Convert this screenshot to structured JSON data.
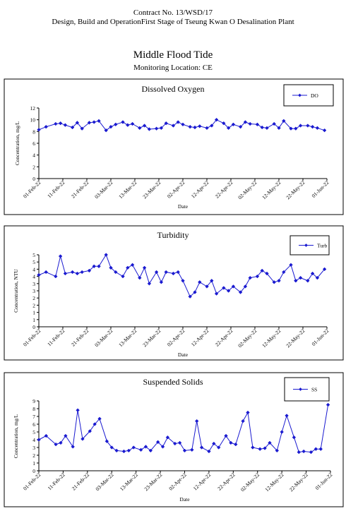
{
  "header": {
    "contract": "Contract No. 13/WSD/17",
    "project": "Design, Build and OperationFirst Stage  of Tseung Kwan O Desalination Plant",
    "title": "Middle Flood Tide",
    "location": "Monitoring Location: CE"
  },
  "colors": {
    "series": "#1a1ad0",
    "frame": "#000000"
  },
  "chart_data": [
    {
      "type": "line",
      "title": "Dissolved Oxygen",
      "xlabel": "Date",
      "ylabel": "Concentration, mg/L",
      "ylim": [
        0,
        12
      ],
      "yticks": [
        0,
        2,
        4,
        6,
        8,
        10,
        12
      ],
      "xticks": [
        "01-Feb-22",
        "11-Feb-22",
        "21-Feb-22",
        "03-Mar-22",
        "13-Mar-22",
        "23-Mar-22",
        "02-Apr-22",
        "12-Apr-22",
        "22-Apr-22",
        "02-May-22",
        "12-May-22",
        "22-May-22",
        "01-Jun-22"
      ],
      "legend_position": "top-right",
      "series": [
        {
          "name": "DO",
          "x": [
            "01-Feb-22",
            "04-Feb-22",
            "08-Feb-22",
            "10-Feb-22",
            "12-Feb-22",
            "15-Feb-22",
            "17-Feb-22",
            "19-Feb-22",
            "22-Feb-22",
            "24-Feb-22",
            "26-Feb-22",
            "01-Mar-22",
            "03-Mar-22",
            "05-Mar-22",
            "08-Mar-22",
            "10-Mar-22",
            "12-Mar-22",
            "15-Mar-22",
            "17-Mar-22",
            "19-Mar-22",
            "22-Mar-22",
            "24-Mar-22",
            "26-Mar-22",
            "29-Mar-22",
            "31-Mar-22",
            "02-Apr-22",
            "05-Apr-22",
            "07-Apr-22",
            "09-Apr-22",
            "12-Apr-22",
            "14-Apr-22",
            "16-Apr-22",
            "19-Apr-22",
            "21-Apr-22",
            "23-Apr-22",
            "26-Apr-22",
            "28-Apr-22",
            "30-Apr-22",
            "03-May-22",
            "05-May-22",
            "07-May-22",
            "10-May-22",
            "12-May-22",
            "14-May-22",
            "17-May-22",
            "19-May-22",
            "21-May-22",
            "24-May-22",
            "26-May-22",
            "28-May-22",
            "31-May-22"
          ],
          "values": [
            8.3,
            8.8,
            9.3,
            9.4,
            9.1,
            8.7,
            9.5,
            8.5,
            9.5,
            9.6,
            9.8,
            8.2,
            8.8,
            9.2,
            9.6,
            9.1,
            9.3,
            8.6,
            9.0,
            8.4,
            8.5,
            8.6,
            9.4,
            9.0,
            9.6,
            9.2,
            8.8,
            8.7,
            8.9,
            8.6,
            9.0,
            10.0,
            9.4,
            8.6,
            9.2,
            8.8,
            9.6,
            9.3,
            9.2,
            8.7,
            8.6,
            9.3,
            8.6,
            9.8,
            8.5,
            8.5,
            9.0,
            9.0,
            8.8,
            8.6,
            8.2
          ]
        }
      ]
    },
    {
      "type": "line",
      "title": "Turbidity",
      "xlabel": "Date",
      "ylabel": "Concentration, NTU",
      "ylim": [
        0,
        5
      ],
      "yticks": [
        0,
        0.5,
        1,
        1.5,
        2,
        2.5,
        3,
        3.5,
        4,
        4.5,
        5
      ],
      "ytick_labels": [
        "0",
        "1",
        "1",
        "2",
        "2",
        "3",
        "3",
        "4",
        "4",
        "5",
        "5"
      ],
      "xticks": [
        "01-Feb-22",
        "11-Feb-22",
        "21-Feb-22",
        "03-Mar-22",
        "13-Mar-22",
        "23-Mar-22",
        "02-Apr-22",
        "12-Apr-22",
        "22-Apr-22",
        "02-May-22",
        "12-May-22",
        "22-May-22",
        "01-Jun-22"
      ],
      "legend_position": "top-right",
      "series": [
        {
          "name": "Turb",
          "x": [
            "01-Feb-22",
            "04-Feb-22",
            "08-Feb-22",
            "10-Feb-22",
            "12-Feb-22",
            "15-Feb-22",
            "17-Feb-22",
            "19-Feb-22",
            "22-Feb-22",
            "24-Feb-22",
            "26-Feb-22",
            "01-Mar-22",
            "03-Mar-22",
            "05-Mar-22",
            "08-Mar-22",
            "10-Mar-22",
            "12-Mar-22",
            "15-Mar-22",
            "17-Mar-22",
            "19-Mar-22",
            "22-Mar-22",
            "24-Mar-22",
            "26-Mar-22",
            "29-Mar-22",
            "31-Mar-22",
            "02-Apr-22",
            "05-Apr-22",
            "07-Apr-22",
            "09-Apr-22",
            "12-Apr-22",
            "14-Apr-22",
            "16-Apr-22",
            "19-Apr-22",
            "21-Apr-22",
            "23-Apr-22",
            "26-Apr-22",
            "28-Apr-22",
            "30-Apr-22",
            "03-May-22",
            "05-May-22",
            "07-May-22",
            "10-May-22",
            "12-May-22",
            "14-May-22",
            "17-May-22",
            "19-May-22",
            "21-May-22",
            "24-May-22",
            "26-May-22",
            "28-May-22",
            "31-May-22"
          ],
          "values": [
            3.6,
            3.8,
            3.5,
            4.9,
            3.7,
            3.8,
            3.7,
            3.8,
            3.9,
            4.2,
            4.2,
            5.0,
            4.1,
            3.8,
            3.5,
            4.1,
            4.3,
            3.4,
            4.1,
            3.0,
            3.8,
            3.1,
            3.8,
            3.7,
            3.8,
            3.2,
            2.1,
            2.4,
            3.1,
            2.8,
            3.2,
            2.3,
            2.7,
            2.5,
            2.8,
            2.4,
            2.8,
            3.4,
            3.5,
            3.9,
            3.7,
            3.1,
            3.2,
            3.8,
            4.3,
            3.2,
            3.4,
            3.2,
            3.7,
            3.4,
            4.0
          ]
        }
      ]
    },
    {
      "type": "line",
      "title": "Suspended Solids",
      "xlabel": "Date",
      "ylabel": "Concentration, mg/L",
      "ylim": [
        0,
        9
      ],
      "yticks": [
        0,
        1,
        2,
        3,
        4,
        5,
        6,
        7,
        8,
        9
      ],
      "xticks": [
        "01-Feb-22",
        "11-Feb-22",
        "21-Feb-22",
        "03-Mar-22",
        "13-Mar-22",
        "23-Mar-22",
        "02-Apr-22",
        "12-Apr-22",
        "22-Apr-22",
        "02-May-22",
        "12-May-22",
        "22-May-22",
        "01-Jun-22"
      ],
      "legend_position": "top-right",
      "series": [
        {
          "name": "SS",
          "x": [
            "01-Feb-22",
            "04-Feb-22",
            "08-Feb-22",
            "10-Feb-22",
            "12-Feb-22",
            "15-Feb-22",
            "17-Feb-22",
            "19-Feb-22",
            "22-Feb-22",
            "24-Feb-22",
            "26-Feb-22",
            "01-Mar-22",
            "03-Mar-22",
            "05-Mar-22",
            "08-Mar-22",
            "10-Mar-22",
            "12-Mar-22",
            "15-Mar-22",
            "17-Mar-22",
            "19-Mar-22",
            "22-Mar-22",
            "24-Mar-22",
            "26-Mar-22",
            "29-Mar-22",
            "31-Mar-22",
            "02-Apr-22",
            "05-Apr-22",
            "07-Apr-22",
            "09-Apr-22",
            "12-Apr-22",
            "14-Apr-22",
            "16-Apr-22",
            "19-Apr-22",
            "21-Apr-22",
            "23-Apr-22",
            "26-Apr-22",
            "28-Apr-22",
            "30-Apr-22",
            "03-May-22",
            "05-May-22",
            "07-May-22",
            "10-May-22",
            "12-May-22",
            "14-May-22",
            "17-May-22",
            "19-May-22",
            "21-May-22",
            "24-May-22",
            "26-May-22",
            "28-May-22",
            "31-May-22"
          ],
          "values": [
            4.0,
            4.5,
            3.4,
            3.6,
            4.5,
            3.1,
            7.8,
            4.1,
            5.1,
            6.0,
            6.7,
            3.8,
            3.0,
            2.6,
            2.5,
            2.6,
            3.0,
            2.7,
            3.1,
            2.6,
            3.7,
            3.1,
            4.3,
            3.5,
            3.6,
            2.6,
            2.7,
            6.4,
            3.0,
            2.5,
            3.5,
            3.0,
            4.5,
            3.6,
            3.4,
            6.4,
            7.5,
            3.0,
            2.8,
            2.9,
            3.6,
            2.6,
            5.0,
            7.1,
            4.3,
            2.4,
            2.5,
            2.4,
            2.8,
            2.8,
            8.5
          ]
        }
      ]
    }
  ]
}
